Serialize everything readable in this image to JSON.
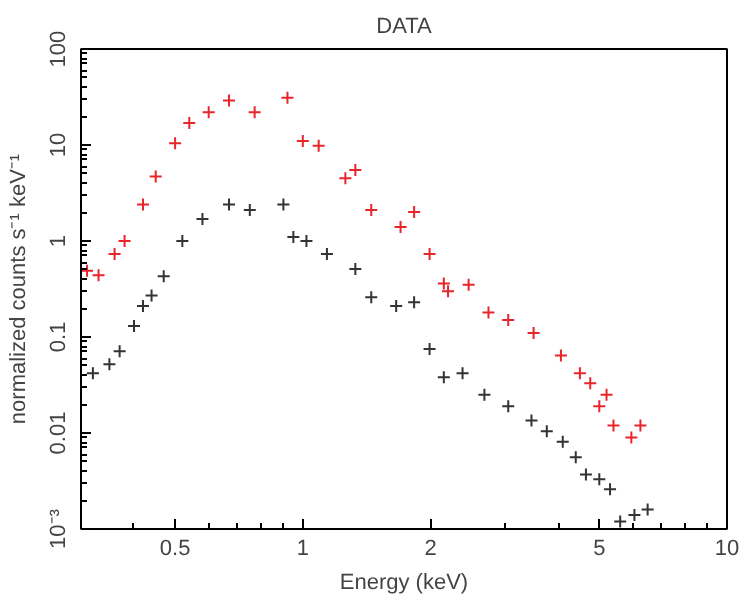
{
  "chart_data": {
    "type": "scatter",
    "title": "DATA",
    "xlabel": "Energy (keV)",
    "ylabel": "normalized counts s⁻¹ keV⁻¹",
    "log": "xy",
    "grid": false,
    "marker": "cross",
    "xlim": [
      0.3,
      10
    ],
    "ylim": [
      0.001,
      100
    ],
    "xticks": [
      0.5,
      1,
      2,
      5,
      10
    ],
    "yticks": [
      {
        "value": 0.001,
        "label": "10⁻³"
      },
      0.01,
      0.1,
      1,
      10,
      100
    ],
    "series": [
      {
        "color": "#e8252a",
        "x": [
          0.31,
          0.33,
          0.36,
          0.38,
          0.42,
          0.45,
          0.5,
          0.54,
          0.6,
          0.67,
          0.77,
          0.92,
          1.0,
          1.09,
          1.26,
          1.33,
          1.45,
          1.7,
          1.83,
          1.99,
          2.15,
          2.2,
          2.46,
          2.74,
          3.05,
          3.5,
          4.06,
          4.5,
          4.76,
          5.0,
          5.2,
          5.4,
          5.95,
          6.25
        ],
        "values": [
          0.49,
          0.44,
          0.73,
          1.0,
          2.4,
          4.7,
          10.4,
          17,
          22,
          29,
          22,
          31,
          11,
          9.8,
          4.5,
          5.5,
          2.1,
          1.4,
          2.0,
          0.73,
          0.36,
          0.3,
          0.35,
          0.18,
          0.15,
          0.11,
          0.064,
          0.042,
          0.033,
          0.019,
          0.025,
          0.012,
          0.009,
          0.012
        ]
      },
      {
        "color": "#333333",
        "x": [
          0.32,
          0.35,
          0.37,
          0.4,
          0.42,
          0.44,
          0.47,
          0.52,
          0.58,
          0.67,
          0.75,
          0.9,
          0.95,
          1.02,
          1.14,
          1.33,
          1.45,
          1.66,
          1.83,
          1.99,
          2.15,
          2.38,
          2.68,
          3.05,
          3.46,
          3.76,
          4.1,
          4.4,
          4.65,
          5.0,
          5.3,
          5.6,
          6.05,
          6.5
        ],
        "values": [
          0.042,
          0.052,
          0.071,
          0.13,
          0.21,
          0.27,
          0.43,
          1.0,
          1.7,
          2.4,
          2.1,
          2.4,
          1.1,
          1.0,
          0.73,
          0.51,
          0.26,
          0.21,
          0.23,
          0.075,
          0.038,
          0.042,
          0.025,
          0.019,
          0.0135,
          0.0104,
          0.0081,
          0.0056,
          0.0037,
          0.0033,
          0.0026,
          0.0012,
          0.0014,
          0.0016
        ]
      }
    ]
  }
}
